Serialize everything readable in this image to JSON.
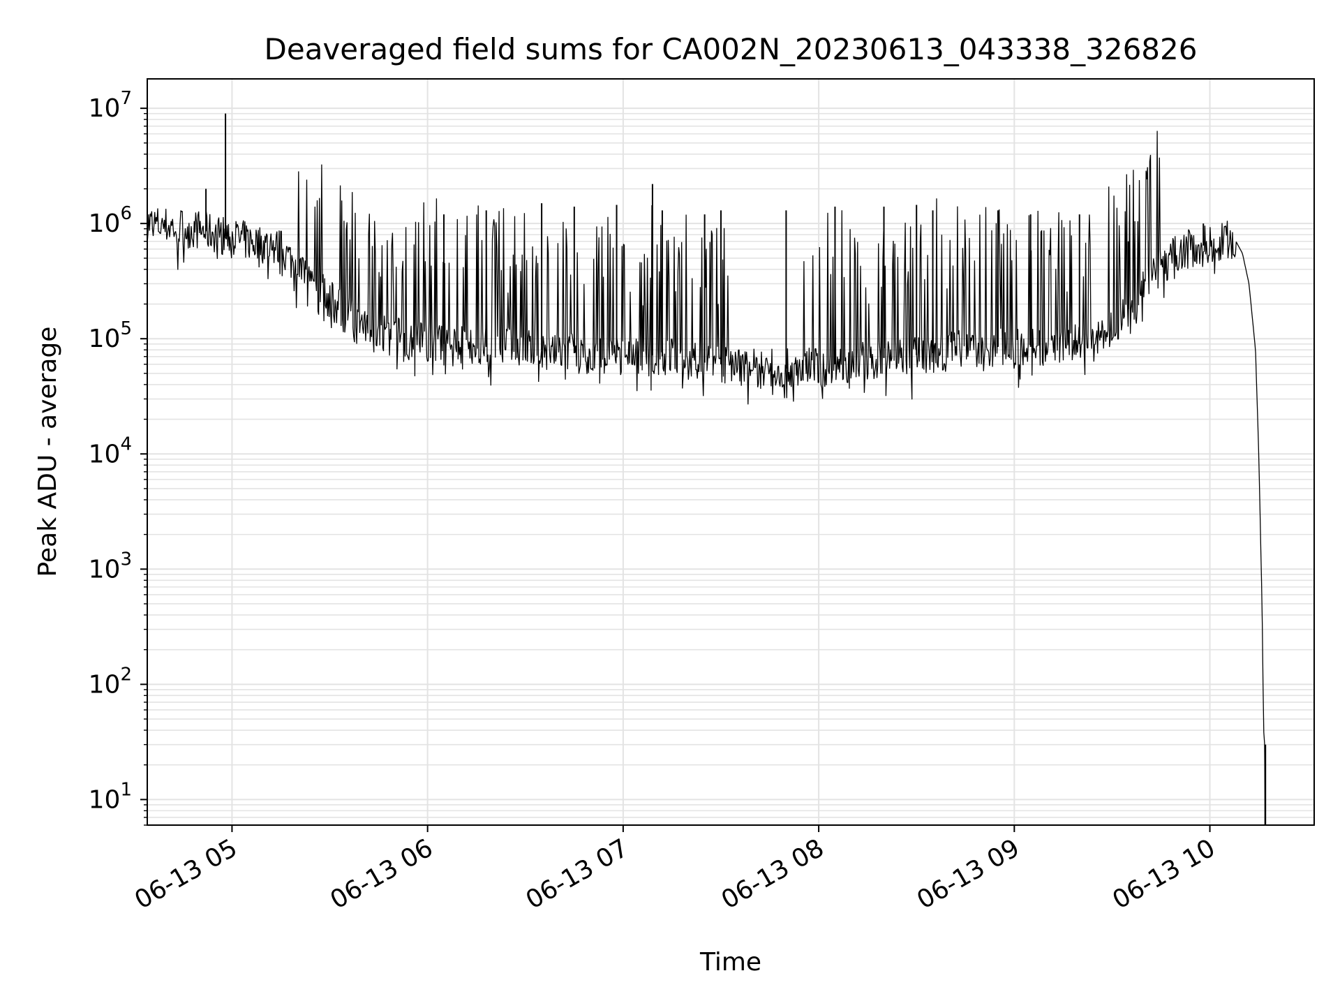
{
  "chart_data": {
    "type": "line",
    "title": "Deaveraged field sums for CA002N_20230613_043338_326826",
    "xlabel": "Time",
    "ylabel": "Peak ADU - average",
    "x_axis": {
      "kind": "time",
      "range": [
        "2023-06-13T04:34:00",
        "2023-06-13T10:32:00"
      ],
      "ticks": [
        "2023-06-13T05:00",
        "2023-06-13T06:00",
        "2023-06-13T07:00",
        "2023-06-13T08:00",
        "2023-06-13T09:00",
        "2023-06-13T10:00"
      ],
      "tick_labels": [
        "06-13 05",
        "06-13 06",
        "06-13 07",
        "06-13 08",
        "06-13 09",
        "06-13 10"
      ],
      "tick_label_rotation": 30
    },
    "y_axis": {
      "scale": "log",
      "range": [
        6,
        18000000
      ],
      "major_ticks": [
        10,
        100,
        1000,
        10000,
        100000,
        1000000,
        10000000
      ],
      "tick_labels": [
        {
          "base": "10",
          "exp": "1"
        },
        {
          "base": "10",
          "exp": "2"
        },
        {
          "base": "10",
          "exp": "3"
        },
        {
          "base": "10",
          "exp": "4"
        },
        {
          "base": "10",
          "exp": "5"
        },
        {
          "base": "10",
          "exp": "6"
        },
        {
          "base": "10",
          "exp": "7"
        }
      ]
    },
    "grid": true,
    "legend": "none",
    "line_color": "#000000",
    "grid_color": "#e3e3e3",
    "series": [
      {
        "x": [
          "04:34",
          "04:40",
          "04:45",
          "04:50",
          "04:55",
          "04:57",
          "04:58",
          "05:00",
          "05:05",
          "05:10",
          "05:15",
          "05:20",
          "05:25",
          "05:30",
          "05:35",
          "05:40",
          "05:45",
          "05:50",
          "05:55",
          "06:00",
          "06:05",
          "06:10",
          "06:15",
          "06:20",
          "06:25",
          "06:30",
          "06:35",
          "06:40",
          "06:45",
          "06:50",
          "06:55",
          "07:00",
          "07:05",
          "07:10",
          "07:15",
          "07:20",
          "07:25",
          "07:30",
          "07:35",
          "07:40",
          "07:45",
          "07:50",
          "07:55",
          "08:00",
          "08:05",
          "08:10",
          "08:15",
          "08:20",
          "08:25",
          "08:30",
          "08:35",
          "08:40",
          "08:45",
          "08:50",
          "08:55",
          "09:00",
          "09:05",
          "09:10",
          "09:15",
          "09:20",
          "09:25",
          "09:30",
          "09:35",
          "09:40",
          "09:45",
          "09:50",
          "09:55",
          "10:00",
          "10:05",
          "10:08",
          "10:10",
          "10:12",
          "10:14",
          "10:15",
          "10:16",
          "10:16.5",
          "10:16.8",
          "10:17"
        ],
        "baseline": [
          1000000,
          950000,
          920000,
          880000,
          820000,
          800000,
          780000,
          760000,
          700000,
          660000,
          600000,
          420000,
          300000,
          220000,
          160000,
          120000,
          110000,
          105000,
          100000,
          95000,
          90000,
          88000,
          85000,
          85000,
          85000,
          82000,
          80000,
          78000,
          75000,
          72000,
          70000,
          68000,
          70000,
          72000,
          68000,
          65000,
          62000,
          60000,
          58000,
          55000,
          55000,
          55000,
          56000,
          58000,
          60000,
          62000,
          65000,
          68000,
          70000,
          72000,
          75000,
          78000,
          80000,
          82000,
          85000,
          85000,
          85000,
          85000,
          88000,
          90000,
          95000,
          120000,
          180000,
          280000,
          420000,
          550000,
          620000,
          660000,
          720000,
          700000,
          550000,
          300000,
          80000,
          10000,
          500,
          40,
          30,
          6
        ]
      },
      {
        "name": "",
        "spike_note": "",
        "spikes": [
          {
            "x": "04:58",
            "y": 9000000
          },
          {
            "x": "04:52",
            "y": 2000000
          },
          {
            "x": "07:09",
            "y": 2200000
          },
          {
            "x": "06:05",
            "y": 1200000
          },
          {
            "x": "06:18",
            "y": 1300000
          },
          {
            "x": "06:35",
            "y": 1500000
          },
          {
            "x": "06:45",
            "y": 1400000
          },
          {
            "x": "06:58",
            "y": 1450000
          },
          {
            "x": "07:12",
            "y": 1300000
          },
          {
            "x": "07:25",
            "y": 1200000
          },
          {
            "x": "07:30",
            "y": 1300000
          },
          {
            "x": "07:50",
            "y": 1300000
          },
          {
            "x": "08:05",
            "y": 1400000
          },
          {
            "x": "08:20",
            "y": 1400000
          },
          {
            "x": "08:30",
            "y": 1450000
          },
          {
            "x": "08:35",
            "y": 1300000
          },
          {
            "x": "08:55",
            "y": 1300000
          },
          {
            "x": "09:05",
            "y": 1200000
          },
          {
            "x": "09:20",
            "y": 1200000
          },
          {
            "x": "09:35",
            "y": 700000
          },
          {
            "x": "09:58",
            "y": 1000000
          }
        ]
      }
    ]
  }
}
